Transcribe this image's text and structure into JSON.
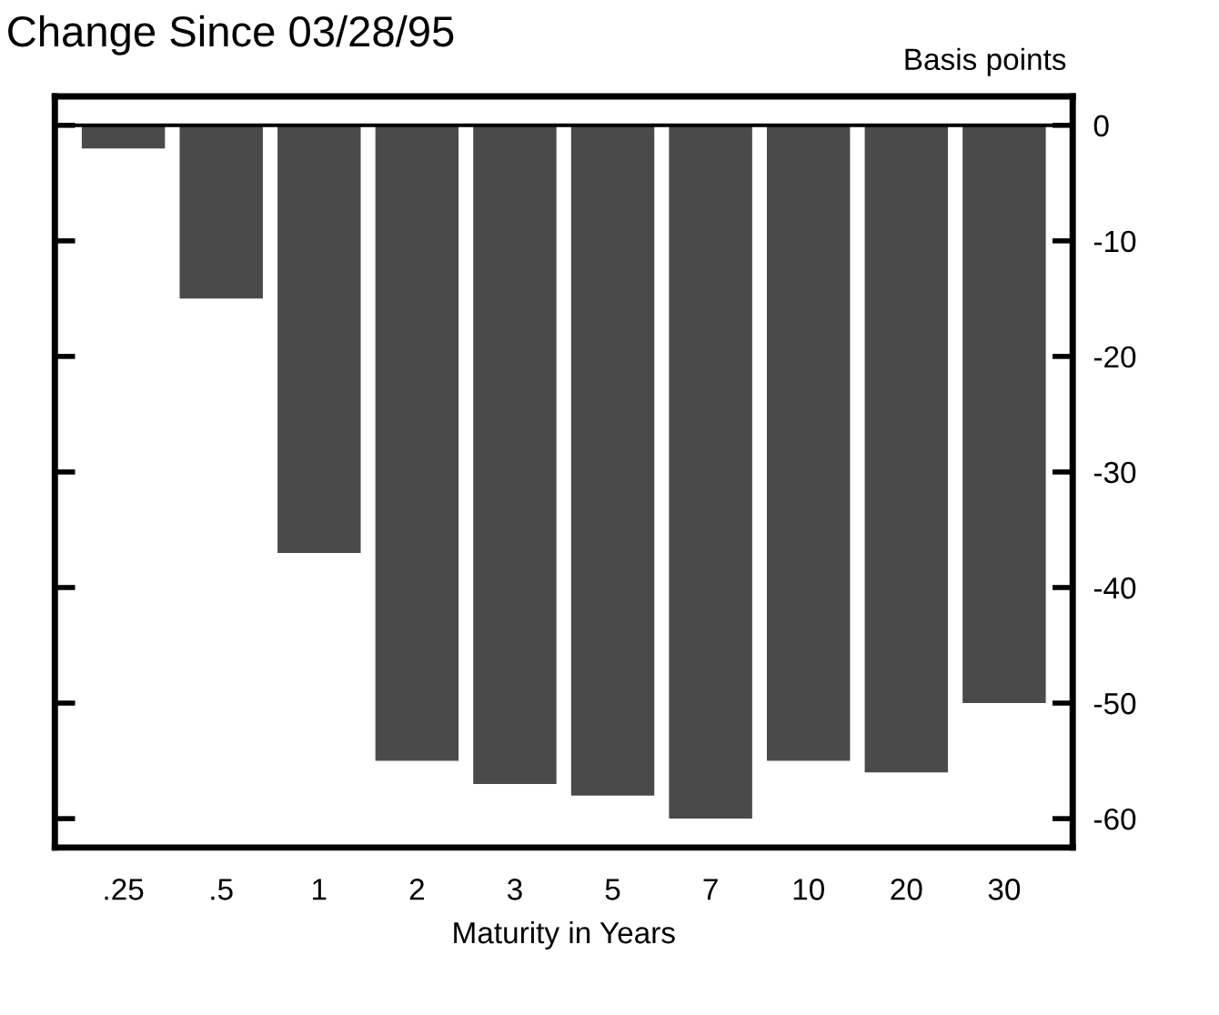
{
  "chart_data": {
    "type": "bar",
    "title": "Change Since 03/28/95",
    "ylabel": "Basis points",
    "xlabel": "Maturity in Years",
    "categories": [
      ".25",
      ".5",
      "1",
      "2",
      "3",
      "5",
      "7",
      "10",
      "20",
      "30"
    ],
    "values": [
      -2,
      -15,
      -37,
      -55,
      -57,
      -58,
      -60,
      -55,
      -56,
      -50
    ],
    "color": "#4a4a4a",
    "ylim": [
      -62.5,
      2.5
    ],
    "yticks": [
      0,
      -10,
      -20,
      -30,
      -40,
      -50,
      -60
    ],
    "ref_lines": [
      {
        "axis": "y",
        "value": 0,
        "label": null,
        "color": "#000000"
      }
    ],
    "grid": false,
    "legend": false
  }
}
